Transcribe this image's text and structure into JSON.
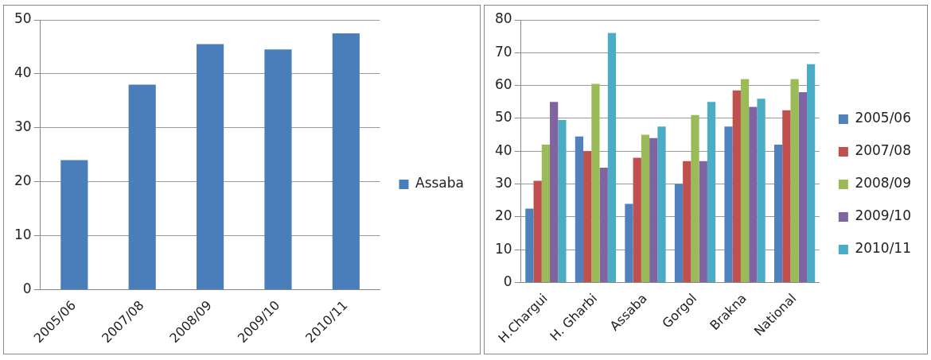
{
  "chart_data": [
    {
      "type": "bar",
      "categories": [
        "2005/06",
        "2007/08",
        "2008/09",
        "2009/10",
        "2010/11"
      ],
      "series": [
        {
          "name": "Assaba",
          "color": "#4a7ebb",
          "values": [
            24,
            38,
            45.5,
            44.5,
            47.5
          ]
        }
      ],
      "ylim": [
        0,
        50
      ],
      "yticks": [
        0,
        10,
        20,
        30,
        40,
        50
      ],
      "grid": "y",
      "legend": "right"
    },
    {
      "type": "bar",
      "categories": [
        "H.Chargui",
        "H. Gharbi",
        "Assaba",
        "Gorgol",
        "Brakna",
        "National"
      ],
      "series": [
        {
          "name": "2005/06",
          "color": "#4f81bd",
          "values": [
            22.5,
            44.5,
            24,
            30,
            47.5,
            42
          ]
        },
        {
          "name": "2007/08",
          "color": "#c0504d",
          "values": [
            31,
            40,
            38,
            37,
            58.5,
            52.5
          ]
        },
        {
          "name": "2008/09",
          "color": "#9bbb59",
          "values": [
            42,
            60.5,
            45,
            51,
            62,
            62
          ]
        },
        {
          "name": "2009/10",
          "color": "#8064a2",
          "values": [
            55,
            35,
            44,
            37,
            53.5,
            58
          ]
        },
        {
          "name": "2010/11",
          "color": "#4bacc6",
          "values": [
            49.5,
            76,
            47.5,
            55,
            56,
            66.5
          ]
        }
      ],
      "ylim": [
        0,
        80
      ],
      "yticks": [
        0,
        10,
        20,
        30,
        40,
        50,
        60,
        70,
        80
      ],
      "grid": "y",
      "legend": "right"
    }
  ]
}
